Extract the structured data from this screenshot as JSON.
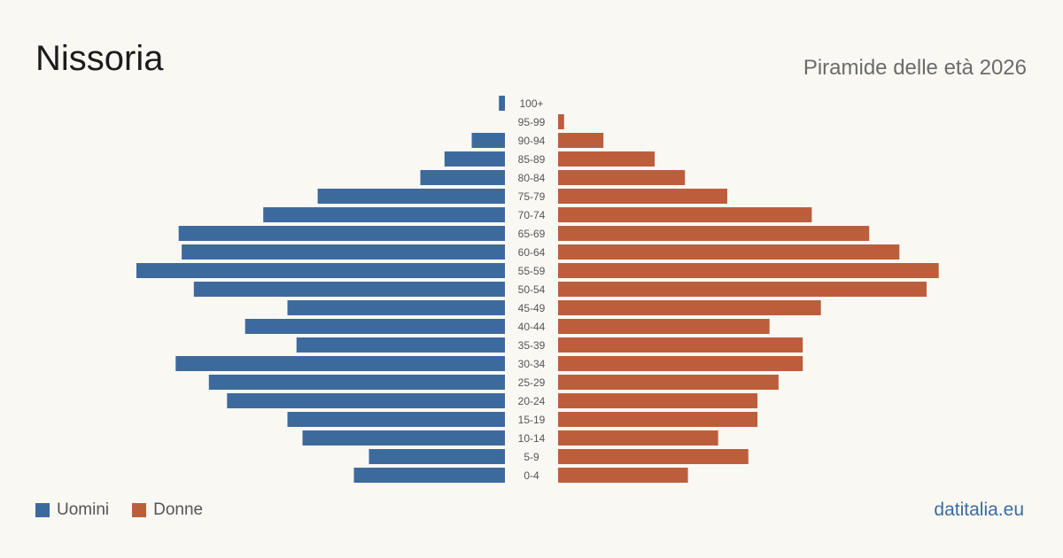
{
  "header": {
    "title": "Nissoria",
    "subtitle": "Piramide delle età 2026"
  },
  "legend": {
    "men_label": "Uomini",
    "women_label": "Donne"
  },
  "brand": "datitalia.eu",
  "colors": {
    "men": "#3d6a9c",
    "women": "#bc5e3c",
    "background": "#faf8f3",
    "age_label": "#555555"
  },
  "chart_data": {
    "type": "bar",
    "orientation": "horizontal-pyramid",
    "categories": [
      "100+",
      "95-99",
      "90-94",
      "85-89",
      "80-84",
      "75-79",
      "70-74",
      "65-69",
      "60-64",
      "55-59",
      "50-54",
      "45-49",
      "40-44",
      "35-39",
      "30-34",
      "25-29",
      "20-24",
      "15-19",
      "10-14",
      "5-9",
      "0-4"
    ],
    "series": [
      {
        "name": "Uomini",
        "values": [
          2,
          0,
          11,
          20,
          28,
          62,
          80,
          108,
          107,
          122,
          103,
          72,
          86,
          69,
          109,
          98,
          92,
          72,
          67,
          45,
          50
        ]
      },
      {
        "name": "Donne",
        "values": [
          0,
          2,
          15,
          32,
          42,
          56,
          84,
          103,
          113,
          126,
          122,
          87,
          70,
          81,
          81,
          73,
          66,
          66,
          53,
          63,
          43
        ]
      }
    ],
    "legend_position": "bottom-left",
    "grid": false
  }
}
